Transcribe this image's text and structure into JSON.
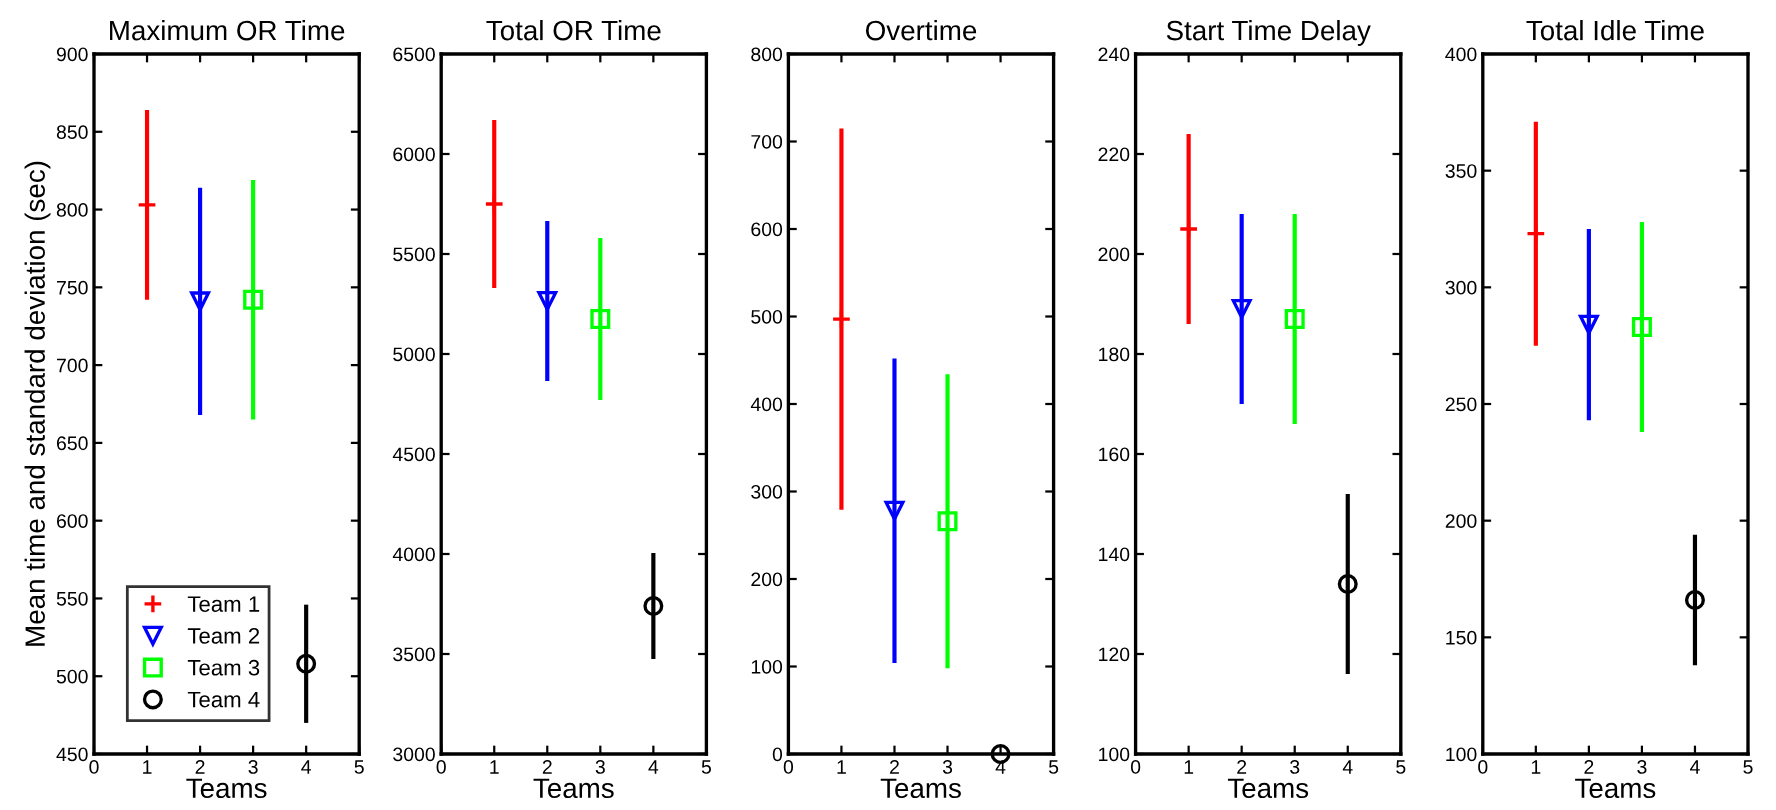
{
  "chart_data": [
    {
      "type": "scatter",
      "title": "Maximum OR Time",
      "xlabel": "Teams",
      "ylabel": "Mean time and standard deviation (sec)",
      "xlim": [
        0,
        5
      ],
      "xticks": [
        0,
        1,
        2,
        3,
        4,
        5
      ],
      "ylim": [
        450,
        900
      ],
      "yticks": [
        450,
        500,
        550,
        600,
        650,
        700,
        750,
        800,
        850,
        900
      ],
      "grid": false,
      "legend": "bottom left",
      "series": [
        {
          "name": "Team 1",
          "color": "#ff0000",
          "marker": "cross",
          "x": [
            1
          ],
          "values": [
            803
          ],
          "errors": [
            61
          ]
        },
        {
          "name": "Team 2",
          "color": "#0000ff",
          "marker": "triangle",
          "x": [
            2
          ],
          "values": [
            741
          ],
          "errors": [
            73
          ]
        },
        {
          "name": "Team 3",
          "color": "#00ff00",
          "marker": "square",
          "x": [
            3
          ],
          "values": [
            742
          ],
          "errors": [
            77
          ]
        },
        {
          "name": "Team 4",
          "color": "#000000",
          "marker": "circle",
          "x": [
            4
          ],
          "values": [
            508
          ],
          "errors": [
            38
          ]
        }
      ]
    },
    {
      "type": "scatter",
      "title": "Total OR Time",
      "xlabel": "Teams",
      "xlim": [
        0,
        5
      ],
      "xticks": [
        0,
        1,
        2,
        3,
        4,
        5
      ],
      "ylim": [
        3000,
        6500
      ],
      "yticks": [
        3000,
        3500,
        4000,
        4500,
        5000,
        5500,
        6000,
        6500
      ],
      "grid": false,
      "series": [
        {
          "color": "#ff0000",
          "marker": "cross",
          "x": [
            1
          ],
          "values": [
            5750
          ],
          "errors": [
            420
          ]
        },
        {
          "color": "#0000ff",
          "marker": "triangle",
          "x": [
            2
          ],
          "values": [
            5265
          ],
          "errors": [
            400
          ]
        },
        {
          "color": "#00ff00",
          "marker": "square",
          "x": [
            3
          ],
          "values": [
            5175
          ],
          "errors": [
            405
          ]
        },
        {
          "color": "#000000",
          "marker": "circle",
          "x": [
            4
          ],
          "values": [
            3740
          ],
          "errors": [
            265
          ]
        }
      ]
    },
    {
      "type": "scatter",
      "title": "Overtime",
      "xlabel": "Teams",
      "xlim": [
        0,
        5
      ],
      "xticks": [
        0,
        1,
        2,
        3,
        4,
        5
      ],
      "ylim": [
        0,
        800
      ],
      "yticks": [
        0,
        100,
        200,
        300,
        400,
        500,
        600,
        700,
        800
      ],
      "grid": false,
      "series": [
        {
          "color": "#ff0000",
          "marker": "cross",
          "x": [
            1
          ],
          "values": [
            497
          ],
          "errors": [
            218
          ]
        },
        {
          "color": "#0000ff",
          "marker": "triangle",
          "x": [
            2
          ],
          "values": [
            278
          ],
          "errors": [
            174
          ]
        },
        {
          "color": "#00ff00",
          "marker": "square",
          "x": [
            3
          ],
          "values": [
            266
          ],
          "errors": [
            168
          ]
        },
        {
          "color": "#000000",
          "marker": "circle",
          "x": [
            4
          ],
          "values": [
            0
          ],
          "errors": [
            0
          ]
        }
      ]
    },
    {
      "type": "scatter",
      "title": "Start Time Delay",
      "xlabel": "Teams",
      "xlim": [
        0,
        5
      ],
      "xticks": [
        0,
        1,
        2,
        3,
        4,
        5
      ],
      "ylim": [
        100,
        240
      ],
      "yticks": [
        100,
        120,
        140,
        160,
        180,
        200,
        220,
        240
      ],
      "grid": false,
      "series": [
        {
          "color": "#ff0000",
          "marker": "cross",
          "x": [
            1
          ],
          "values": [
            205
          ],
          "errors": [
            19
          ]
        },
        {
          "color": "#0000ff",
          "marker": "triangle",
          "x": [
            2
          ],
          "values": [
            189
          ],
          "errors": [
            19
          ]
        },
        {
          "color": "#00ff00",
          "marker": "square",
          "x": [
            3
          ],
          "values": [
            187
          ],
          "errors": [
            21
          ]
        },
        {
          "color": "#000000",
          "marker": "circle",
          "x": [
            4
          ],
          "values": [
            134
          ],
          "errors": [
            18
          ]
        }
      ]
    },
    {
      "type": "scatter",
      "title": "Total Idle Time",
      "xlabel": "Teams",
      "xlim": [
        0,
        5
      ],
      "xticks": [
        0,
        1,
        2,
        3,
        4,
        5
      ],
      "ylim": [
        100,
        400
      ],
      "yticks": [
        100,
        150,
        200,
        250,
        300,
        350,
        400
      ],
      "grid": false,
      "series": [
        {
          "color": "#ff0000",
          "marker": "cross",
          "x": [
            1
          ],
          "values": [
            323
          ],
          "errors": [
            48
          ]
        },
        {
          "color": "#0000ff",
          "marker": "triangle",
          "x": [
            2
          ],
          "values": [
            284
          ],
          "errors": [
            41
          ]
        },
        {
          "color": "#00ff00",
          "marker": "square",
          "x": [
            3
          ],
          "values": [
            283
          ],
          "errors": [
            45
          ]
        },
        {
          "color": "#000000",
          "marker": "circle",
          "x": [
            4
          ],
          "values": [
            166
          ],
          "errors": [
            28
          ]
        }
      ]
    }
  ]
}
